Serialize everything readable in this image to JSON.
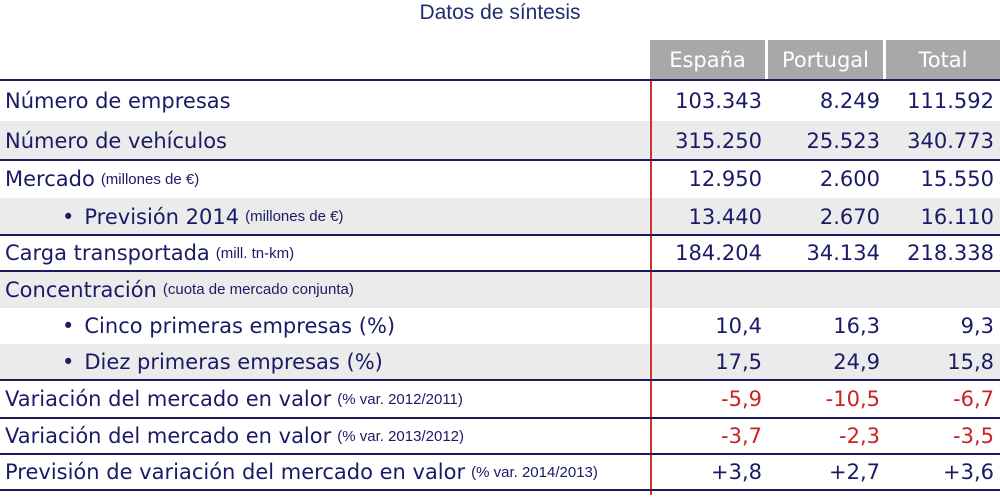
{
  "title": "Datos de síntesis",
  "chart_data": {
    "type": "table",
    "columns": [
      "España",
      "Portugal",
      "Total"
    ],
    "rows": [
      {
        "label": "Número de empresas",
        "note": "",
        "bullet": false,
        "values": [
          "103.343",
          "8.249",
          "111.592"
        ],
        "negative": false
      },
      {
        "label": "Número de vehículos",
        "note": "",
        "bullet": false,
        "values": [
          "315.250",
          "25.523",
          "340.773"
        ],
        "negative": false
      },
      {
        "label": "Mercado",
        "note": "(millones de €)",
        "bullet": false,
        "values": [
          "12.950",
          "2.600",
          "15.550"
        ],
        "negative": false
      },
      {
        "label": "Previsión 2014",
        "note": "(millones de €)",
        "bullet": true,
        "values": [
          "13.440",
          "2.670",
          "16.110"
        ],
        "negative": false
      },
      {
        "label": "Carga transportada",
        "note": "(mill. tn-km)",
        "bullet": false,
        "values": [
          "184.204",
          "34.134",
          "218.338"
        ],
        "negative": false
      },
      {
        "label": "Concentración",
        "note": "(cuota de mercado conjunta)",
        "bullet": false,
        "values": [
          "",
          "",
          ""
        ],
        "negative": false
      },
      {
        "label": "Cinco primeras empresas (%)",
        "note": "",
        "bullet": true,
        "values": [
          "10,4",
          "16,3",
          "9,3"
        ],
        "negative": false
      },
      {
        "label": "Diez primeras empresas (%)",
        "note": "",
        "bullet": true,
        "values": [
          "17,5",
          "24,9",
          "15,8"
        ],
        "negative": false
      },
      {
        "label": "Variación del mercado en valor",
        "note": "(% var. 2012/2011)",
        "bullet": false,
        "values": [
          "-5,9",
          "-10,5",
          "-6,7"
        ],
        "negative": true
      },
      {
        "label": "Variación del mercado en valor",
        "note": "(% var. 2013/2012)",
        "bullet": false,
        "values": [
          "-3,7",
          "-2,3",
          "-3,5"
        ],
        "negative": true
      },
      {
        "label": "Previsión de variación del mercado en valor",
        "note": "(% var. 2014/2013)",
        "bullet": false,
        "values": [
          "+3,8",
          "+2,7",
          "+3,6"
        ],
        "negative": false
      }
    ]
  },
  "colors": {
    "text": "#1a1a66",
    "negative": "#cc2222",
    "header_bg": "#a8a8a8",
    "shade": "#ebebeb",
    "divider": "#cc3333"
  }
}
